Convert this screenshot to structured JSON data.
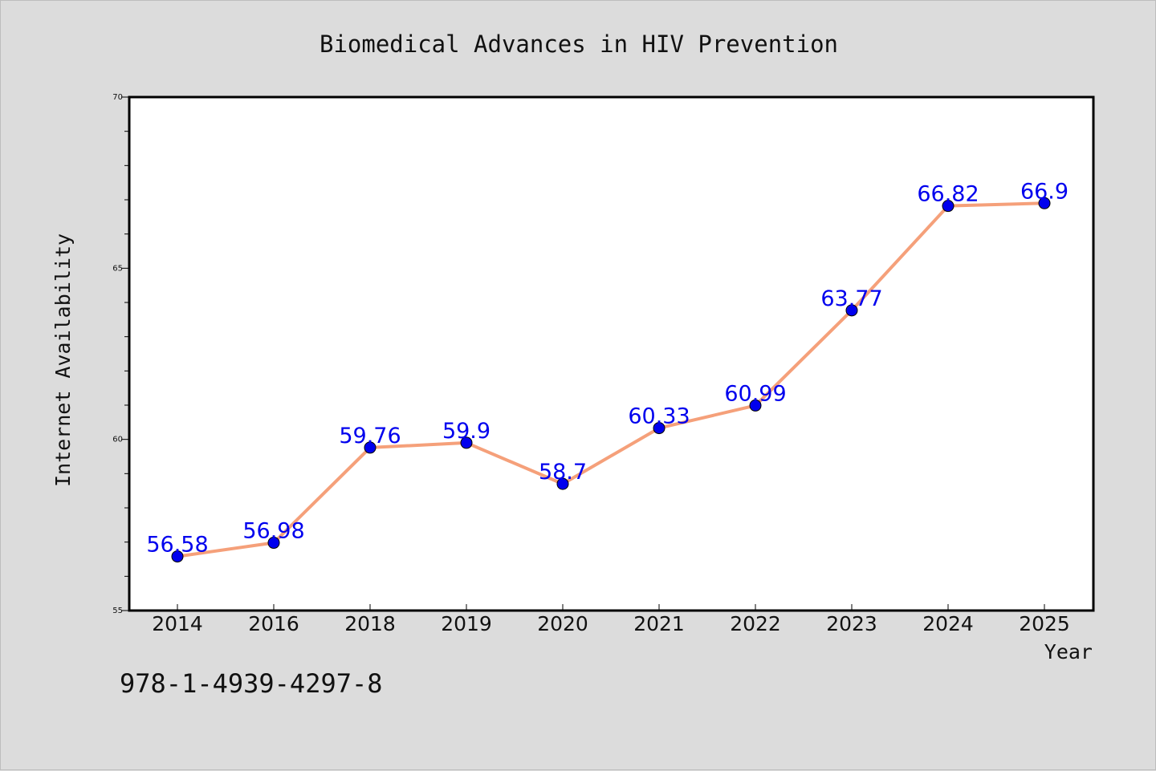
{
  "chart_data": {
    "type": "line",
    "title": "Biomedical Advances in HIV Prevention",
    "xlabel": "Year",
    "ylabel": "Internet Availability",
    "categories": [
      "2014",
      "2016",
      "2018",
      "2019",
      "2020",
      "2021",
      "2022",
      "2023",
      "2024",
      "2025"
    ],
    "series": [
      {
        "values": [
          56.58,
          56.98,
          59.76,
          59.9,
          58.7,
          60.33,
          60.99,
          63.77,
          66.82,
          66.9
        ],
        "labels": [
          "56.58",
          "56.98",
          "59.76",
          "59.9",
          "58.7",
          "60.33",
          "60.99",
          "63.77",
          "66.82",
          "66.9"
        ],
        "line_color": "#f5a07a",
        "marker_color": "#0000ee",
        "label_color": "#0000ee"
      }
    ],
    "ylim": [
      55,
      70
    ],
    "yticks": [
      "55",
      "60",
      "65",
      "70"
    ],
    "grid": false,
    "legend": "none"
  },
  "footer": {
    "isbn": "978-1-4939-4297-8"
  },
  "colors": {
    "background": "#dcdcdc",
    "plot_background": "#ffffff",
    "axis": "#000000"
  }
}
